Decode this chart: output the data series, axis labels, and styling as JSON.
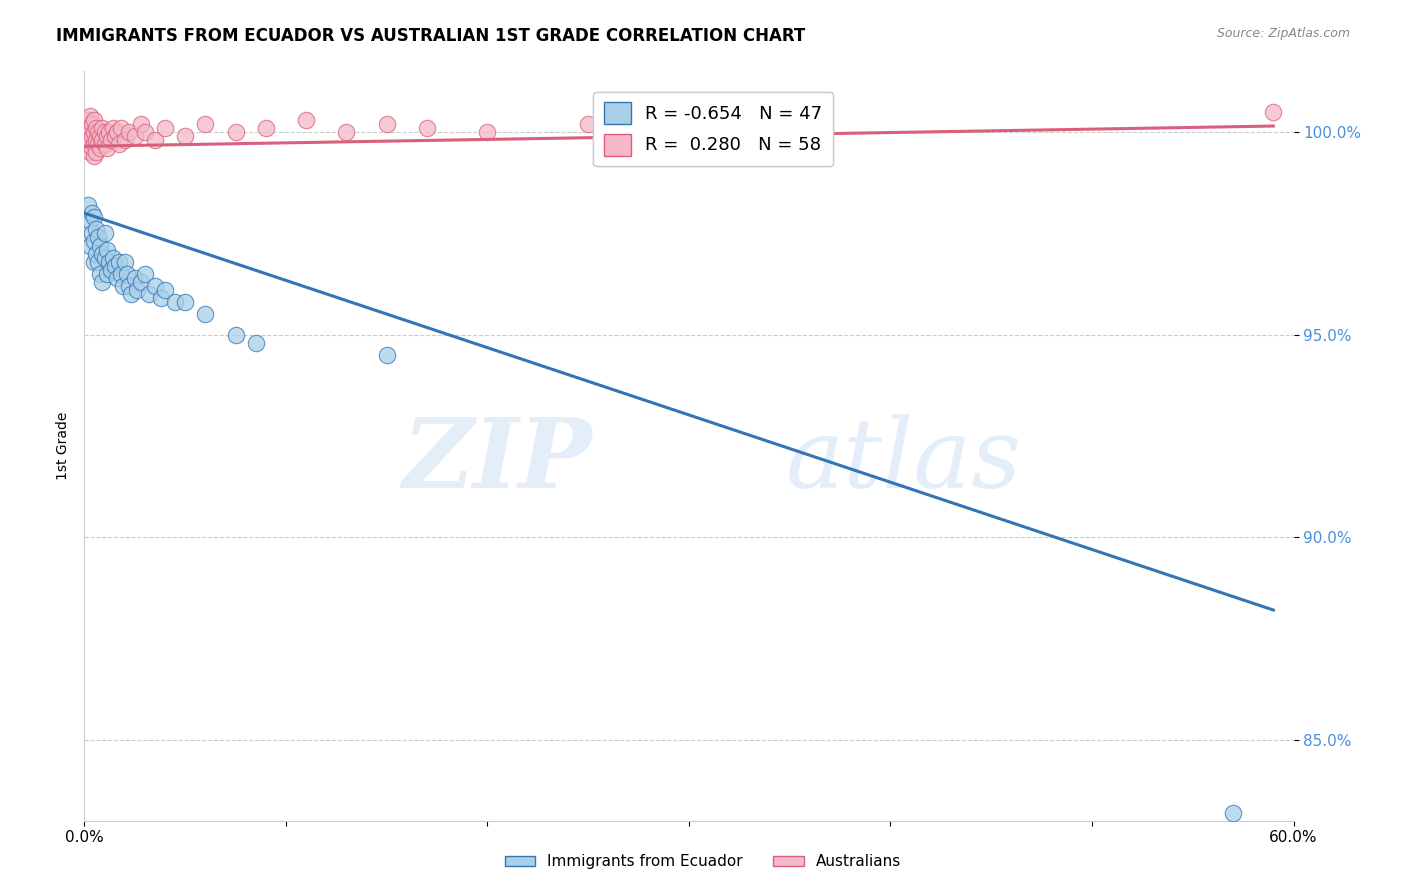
{
  "title": "IMMIGRANTS FROM ECUADOR VS AUSTRALIAN 1ST GRADE CORRELATION CHART",
  "source": "Source: ZipAtlas.com",
  "ylabel": "1st Grade",
  "yticks": [
    85.0,
    90.0,
    95.0,
    100.0
  ],
  "ytick_labels": [
    "85.0%",
    "90.0%",
    "95.0%",
    "100.0%"
  ],
  "xlim": [
    0.0,
    0.6
  ],
  "ylim": [
    83.0,
    101.5
  ],
  "legend_r_blue": "-0.654",
  "legend_n_blue": "47",
  "legend_r_pink": "0.280",
  "legend_n_pink": "58",
  "blue_color": "#a8cfe8",
  "pink_color": "#f4b8c8",
  "blue_line_color": "#3575b5",
  "pink_line_color": "#d9607a",
  "blue_scatter": [
    [
      0.002,
      98.2
    ],
    [
      0.003,
      97.8
    ],
    [
      0.003,
      97.2
    ],
    [
      0.004,
      98.0
    ],
    [
      0.004,
      97.5
    ],
    [
      0.005,
      97.9
    ],
    [
      0.005,
      97.3
    ],
    [
      0.005,
      96.8
    ],
    [
      0.006,
      97.6
    ],
    [
      0.006,
      97.0
    ],
    [
      0.007,
      97.4
    ],
    [
      0.007,
      96.8
    ],
    [
      0.008,
      97.2
    ],
    [
      0.008,
      96.5
    ],
    [
      0.009,
      97.0
    ],
    [
      0.009,
      96.3
    ],
    [
      0.01,
      97.5
    ],
    [
      0.01,
      96.9
    ],
    [
      0.011,
      97.1
    ],
    [
      0.011,
      96.5
    ],
    [
      0.012,
      96.8
    ],
    [
      0.013,
      96.6
    ],
    [
      0.014,
      96.9
    ],
    [
      0.015,
      96.7
    ],
    [
      0.016,
      96.4
    ],
    [
      0.017,
      96.8
    ],
    [
      0.018,
      96.5
    ],
    [
      0.019,
      96.2
    ],
    [
      0.02,
      96.8
    ],
    [
      0.021,
      96.5
    ],
    [
      0.022,
      96.2
    ],
    [
      0.023,
      96.0
    ],
    [
      0.025,
      96.4
    ],
    [
      0.026,
      96.1
    ],
    [
      0.028,
      96.3
    ],
    [
      0.03,
      96.5
    ],
    [
      0.032,
      96.0
    ],
    [
      0.035,
      96.2
    ],
    [
      0.038,
      95.9
    ],
    [
      0.04,
      96.1
    ],
    [
      0.045,
      95.8
    ],
    [
      0.05,
      95.8
    ],
    [
      0.06,
      95.5
    ],
    [
      0.075,
      95.0
    ],
    [
      0.085,
      94.8
    ],
    [
      0.15,
      94.5
    ],
    [
      0.57,
      83.2
    ]
  ],
  "pink_scatter": [
    [
      0.001,
      100.2
    ],
    [
      0.001,
      100.0
    ],
    [
      0.001,
      99.8
    ],
    [
      0.002,
      100.3
    ],
    [
      0.002,
      100.1
    ],
    [
      0.002,
      99.9
    ],
    [
      0.002,
      99.7
    ],
    [
      0.003,
      100.4
    ],
    [
      0.003,
      100.1
    ],
    [
      0.003,
      99.8
    ],
    [
      0.003,
      99.5
    ],
    [
      0.004,
      100.2
    ],
    [
      0.004,
      99.9
    ],
    [
      0.004,
      99.6
    ],
    [
      0.005,
      100.3
    ],
    [
      0.005,
      100.0
    ],
    [
      0.005,
      99.7
    ],
    [
      0.005,
      99.4
    ],
    [
      0.006,
      100.1
    ],
    [
      0.006,
      99.8
    ],
    [
      0.006,
      99.5
    ],
    [
      0.007,
      100.0
    ],
    [
      0.007,
      99.7
    ],
    [
      0.008,
      99.9
    ],
    [
      0.008,
      99.6
    ],
    [
      0.009,
      100.1
    ],
    [
      0.009,
      99.8
    ],
    [
      0.01,
      100.0
    ],
    [
      0.01,
      99.7
    ],
    [
      0.011,
      99.9
    ],
    [
      0.011,
      99.6
    ],
    [
      0.012,
      100.0
    ],
    [
      0.013,
      99.8
    ],
    [
      0.014,
      100.1
    ],
    [
      0.015,
      99.9
    ],
    [
      0.016,
      100.0
    ],
    [
      0.017,
      99.7
    ],
    [
      0.018,
      100.1
    ],
    [
      0.02,
      99.8
    ],
    [
      0.022,
      100.0
    ],
    [
      0.025,
      99.9
    ],
    [
      0.028,
      100.2
    ],
    [
      0.03,
      100.0
    ],
    [
      0.035,
      99.8
    ],
    [
      0.04,
      100.1
    ],
    [
      0.05,
      99.9
    ],
    [
      0.06,
      100.2
    ],
    [
      0.075,
      100.0
    ],
    [
      0.09,
      100.1
    ],
    [
      0.11,
      100.3
    ],
    [
      0.13,
      100.0
    ],
    [
      0.15,
      100.2
    ],
    [
      0.17,
      100.1
    ],
    [
      0.2,
      100.0
    ],
    [
      0.25,
      100.2
    ],
    [
      0.3,
      100.1
    ],
    [
      0.34,
      100.3
    ],
    [
      0.59,
      100.5
    ]
  ],
  "blue_trendline": [
    [
      0.0,
      98.0
    ],
    [
      0.59,
      88.2
    ]
  ],
  "pink_trendline": [
    [
      0.0,
      99.65
    ],
    [
      0.59,
      100.15
    ]
  ]
}
